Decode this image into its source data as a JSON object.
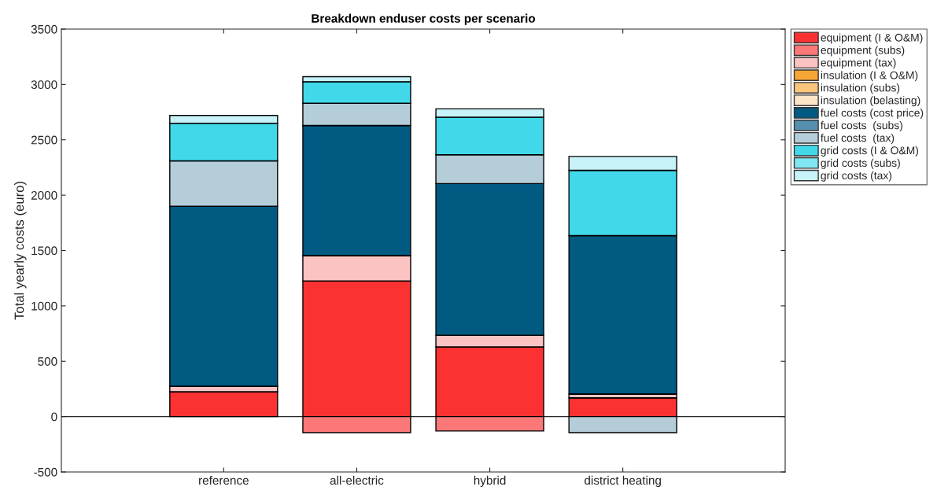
{
  "chart_data": {
    "type": "bar",
    "title": "Breakdown enduser costs per scenario",
    "ylabel": "Total yearly costs (euro)",
    "categories": [
      "reference",
      "all-electric",
      "hybrid",
      "district heating"
    ],
    "stacked": true,
    "series": [
      {
        "name": "equipment (I & O&M)",
        "color": "#fc3232",
        "values": [
          225,
          1225,
          630,
          170
        ]
      },
      {
        "name": "equipment (subs)",
        "color": "#fc7878",
        "values": [
          0,
          -145,
          -130,
          0
        ]
      },
      {
        "name": "equipment (tax)",
        "color": "#fcc3c3",
        "values": [
          50,
          230,
          105,
          35
        ]
      },
      {
        "name": "insulation (I & O&M)",
        "color": "#f7a535",
        "values": [
          0,
          0,
          0,
          0
        ]
      },
      {
        "name": "insulation (subs)",
        "color": "#fac67c",
        "values": [
          0,
          0,
          0,
          0
        ]
      },
      {
        "name": "insulation (belasting)",
        "color": "#fde5c8",
        "values": [
          0,
          0,
          0,
          0
        ]
      },
      {
        "name": "fuel costs (cost price)",
        "color": "#005a82",
        "values": [
          1625,
          1175,
          1370,
          1430
        ]
      },
      {
        "name": "fuel costs  (subs)",
        "color": "#5591af",
        "values": [
          0,
          0,
          0,
          0
        ]
      },
      {
        "name": "fuel costs  (tax)",
        "color": "#b4cdd9",
        "values": [
          410,
          200,
          260,
          -145
        ]
      },
      {
        "name": "grid costs (I & O&M)",
        "color": "#41d9ea",
        "values": [
          340,
          195,
          340,
          590
        ]
      },
      {
        "name": "grid costs (subs)",
        "color": "#80e6f2",
        "values": [
          0,
          0,
          0,
          0
        ]
      },
      {
        "name": "grid costs (tax)",
        "color": "#c6f2f8",
        "values": [
          70,
          45,
          75,
          125
        ]
      }
    ],
    "ylim": [
      -500,
      3500
    ],
    "yticks": [
      -500,
      0,
      500,
      1000,
      1500,
      2000,
      2500,
      3000,
      3500
    ],
    "ref_lines": [
      {
        "axis": "y",
        "value": 0,
        "color": "#262626"
      }
    ],
    "grid": false,
    "legend": "top right"
  }
}
